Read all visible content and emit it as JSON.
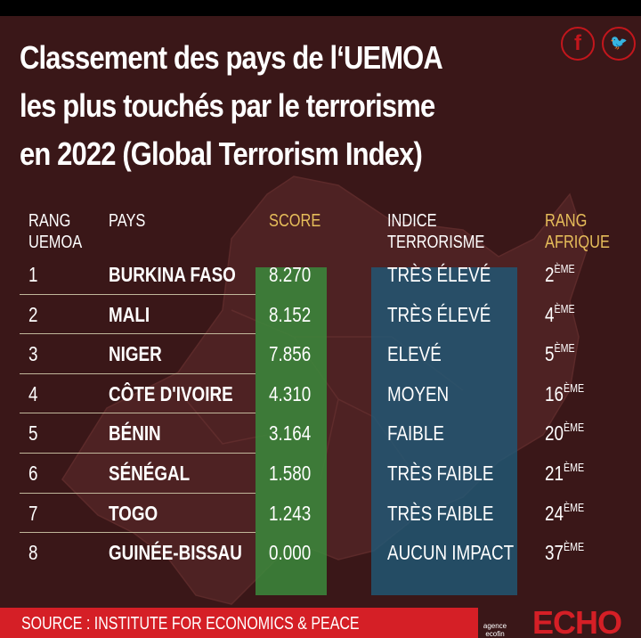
{
  "title_lines": [
    "Classement des pays de l‘UEMOA",
    "les plus touchés par le terrorisme",
    "en 2022 (Global Terrorism Index)"
  ],
  "social": {
    "facebook": "f",
    "twitter": "t"
  },
  "headers": {
    "rang_uemoa": [
      "RANG",
      "UEMOA"
    ],
    "pays": [
      "PAYS"
    ],
    "score": [
      "SCORE"
    ],
    "indice": [
      "INDICE",
      "TERRORISME"
    ],
    "rang_afrique": [
      "RANG",
      "AFRIQUE"
    ]
  },
  "chart_data": {
    "type": "table",
    "title": "Classement des pays de l‘UEMOA les plus touchés par le terrorisme en 2022 (Global Terrorism Index)",
    "columns": [
      "RANG UEMOA",
      "PAYS",
      "SCORE",
      "INDICE TERRORISME",
      "RANG AFRIQUE"
    ],
    "rows": [
      {
        "rank": "1",
        "pays": "BURKINA FASO",
        "score": "8.270",
        "indice": "TRÈS ÉLEVÉ",
        "afrique_num": "2",
        "afrique_sup": "ÈME"
      },
      {
        "rank": "2",
        "pays": "MALI",
        "score": "8.152",
        "indice": "TRÈS ÉLEVÉ",
        "afrique_num": "4",
        "afrique_sup": "ÈME"
      },
      {
        "rank": "3",
        "pays": "NIGER",
        "score": "7.856",
        "indice": "ELEVÉ",
        "afrique_num": "5",
        "afrique_sup": "ÈME"
      },
      {
        "rank": "4",
        "pays": "CÔTE D'IVOIRE",
        "score": "4.310",
        "indice": "MOYEN",
        "afrique_num": "16",
        "afrique_sup": "ÈME"
      },
      {
        "rank": "5",
        "pays": "BÉNIN",
        "score": "3.164",
        "indice": "FAIBLE",
        "afrique_num": "20",
        "afrique_sup": "ÈME"
      },
      {
        "rank": "6",
        "pays": "SÉNÉGAL",
        "score": "1.580",
        "indice": "TRÈS FAIBLE",
        "afrique_num": "21",
        "afrique_sup": "ÈME"
      },
      {
        "rank": "7",
        "pays": "TOGO",
        "score": "1.243",
        "indice": "TRÈS FAIBLE",
        "afrique_num": "24",
        "afrique_sup": "ÈME"
      },
      {
        "rank": "8",
        "pays": "GUINÉE-BISSAU",
        "score": "0.000",
        "indice": "AUCUN IMPACT",
        "afrique_num": "37",
        "afrique_sup": "ÈME"
      }
    ]
  },
  "footer": {
    "source": "SOURCE : INSTITUTE FOR ECONOMICS & PEACE",
    "agence": "agence ecofin",
    "echo": "ECHO"
  },
  "colors": {
    "background": "#3a1718",
    "score_band": "#3b8a3c",
    "indice_band": "#1f5a78",
    "header_gold": "#e6bd5a",
    "accent_red": "#d51f26"
  }
}
